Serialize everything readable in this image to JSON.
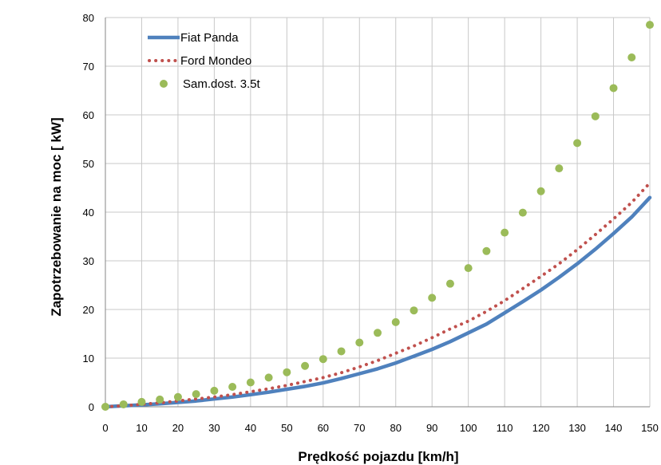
{
  "chart_data": {
    "type": "line",
    "xlabel": "Prędkość pojazdu [km/h]",
    "ylabel": "Zapotrzebowanie na moc [ kW]",
    "xlim": [
      0,
      150
    ],
    "ylim": [
      0,
      80
    ],
    "x_ticks": [
      "0",
      "10",
      "20",
      "30",
      "40",
      "50",
      "60",
      "70",
      "80",
      "90",
      "100",
      "110",
      "120",
      "130",
      "140",
      "150"
    ],
    "y_ticks": [
      "0",
      "10",
      "20",
      "30",
      "40",
      "50",
      "60",
      "70",
      "80"
    ],
    "grid": true,
    "legend_position": "top-left",
    "x": [
      0,
      5,
      10,
      15,
      20,
      25,
      30,
      35,
      40,
      45,
      50,
      55,
      60,
      65,
      70,
      75,
      80,
      85,
      90,
      95,
      100,
      105,
      110,
      115,
      120,
      125,
      130,
      135,
      140,
      145,
      150
    ],
    "series": [
      {
        "name": "Fiat Panda",
        "style": "solid-line",
        "color": "#4f81bd",
        "values": [
          0,
          0.2,
          0.4,
          0.6,
          0.9,
          1.2,
          1.6,
          2.0,
          2.5,
          3.0,
          3.6,
          4.2,
          4.9,
          5.8,
          6.8,
          7.8,
          9.0,
          10.4,
          11.8,
          13.4,
          15.2,
          17.0,
          19.3,
          21.6,
          24.0,
          26.6,
          29.4,
          32.4,
          35.6,
          39.0,
          43.0
        ]
      },
      {
        "name": "Ford Mondeo",
        "style": "dotted-line",
        "color": "#c0504d",
        "values": [
          0,
          0.2,
          0.5,
          0.8,
          1.2,
          1.6,
          2.0,
          2.5,
          3.1,
          3.7,
          4.4,
          5.2,
          6.0,
          7.0,
          8.2,
          9.5,
          11.0,
          12.5,
          14.2,
          16.0,
          17.6,
          19.6,
          21.8,
          24.3,
          26.8,
          29.4,
          32.3,
          35.4,
          38.6,
          42.0,
          46.0
        ]
      },
      {
        "name": "Sam.dost. 3.5t",
        "style": "markers",
        "color": "#9bbb59",
        "values": [
          0,
          0.5,
          1.0,
          1.5,
          2.0,
          2.6,
          3.3,
          4.1,
          5.0,
          6.0,
          7.1,
          8.4,
          9.8,
          11.4,
          13.2,
          15.2,
          17.4,
          19.8,
          22.4,
          25.3,
          28.5,
          32.0,
          35.8,
          39.9,
          44.3,
          49.0,
          54.2,
          59.7,
          65.5,
          71.8,
          78.5
        ]
      }
    ]
  }
}
